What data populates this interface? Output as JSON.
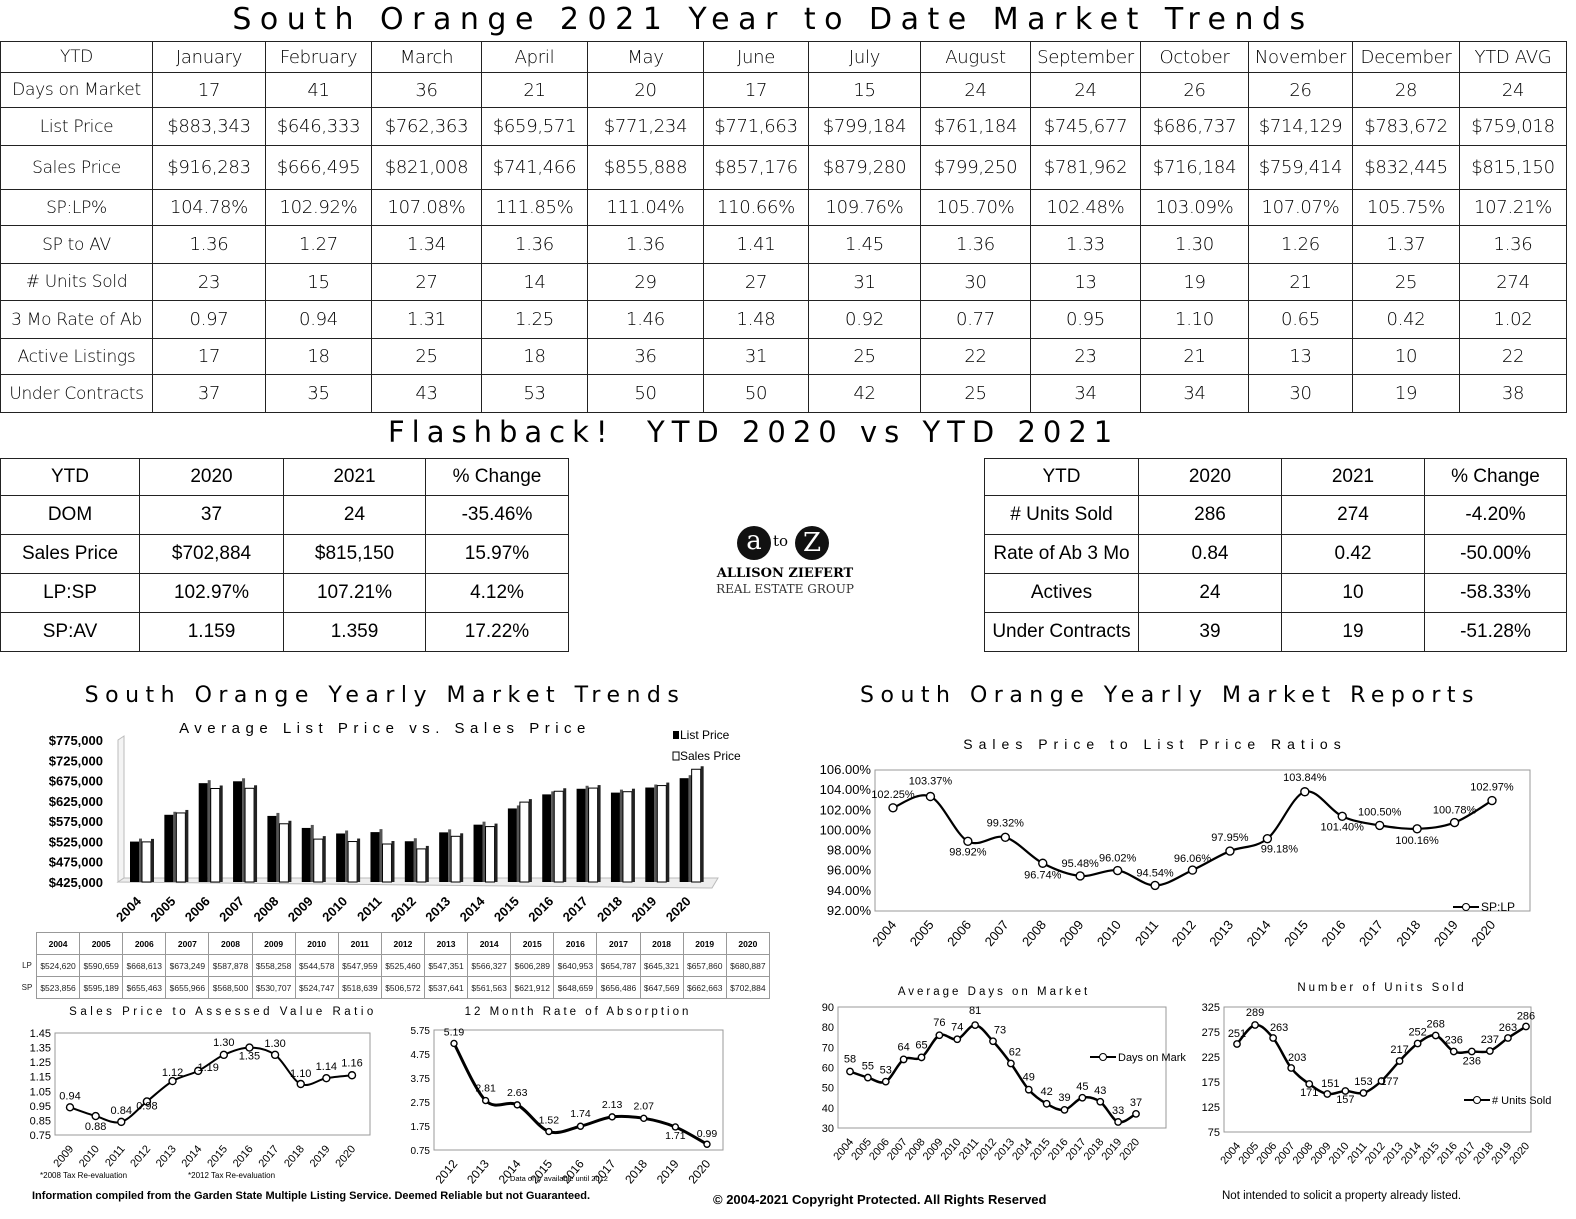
{
  "main_title": "South Orange 2021 Year to Date Market Trends",
  "ytd_table": {
    "headers": [
      "YTD",
      "January",
      "February",
      "March",
      "April",
      "May",
      "June",
      "July",
      "August",
      "September",
      "October",
      "November",
      "December",
      "YTD AVG"
    ],
    "rows": [
      [
        "Days on Market",
        "17",
        "41",
        "36",
        "21",
        "20",
        "17",
        "15",
        "24",
        "24",
        "26",
        "26",
        "28",
        "24"
      ],
      [
        "List Price",
        "$883,343",
        "$646,333",
        "$762,363",
        "$659,571",
        "$771,234",
        "$771,663",
        "$799,184",
        "$761,184",
        "$745,677",
        "$686,737",
        "$714,129",
        "$783,672",
        "$759,018"
      ],
      [
        "Sales Price",
        "$916,283",
        "$666,495",
        "$821,008",
        "$741,466",
        "$855,888",
        "$857,176",
        "$879,280",
        "$799,250",
        "$781,962",
        "$716,184",
        "$759,414",
        "$832,445",
        "$815,150"
      ],
      [
        "SP:LP%",
        "104.78%",
        "102.92%",
        "107.08%",
        "111.85%",
        "111.04%",
        "110.66%",
        "109.76%",
        "105.70%",
        "102.48%",
        "103.09%",
        "107.07%",
        "105.75%",
        "107.21%"
      ],
      [
        "SP to AV",
        "1.36",
        "1.27",
        "1.34",
        "1.36",
        "1.36",
        "1.41",
        "1.45",
        "1.36",
        "1.33",
        "1.30",
        "1.26",
        "1.37",
        "1.36"
      ],
      [
        "# Units Sold",
        "23",
        "15",
        "27",
        "14",
        "29",
        "27",
        "31",
        "30",
        "13",
        "19",
        "21",
        "25",
        "274"
      ],
      [
        "3 Mo Rate of Ab",
        "0.97",
        "0.94",
        "1.31",
        "1.25",
        "1.46",
        "1.48",
        "0.92",
        "0.77",
        "0.95",
        "1.10",
        "0.65",
        "0.42",
        "1.02"
      ],
      [
        "Active Listings",
        "17",
        "18",
        "25",
        "18",
        "36",
        "31",
        "25",
        "22",
        "23",
        "21",
        "13",
        "10",
        "22"
      ],
      [
        "Under Contracts",
        "37",
        "35",
        "43",
        "53",
        "50",
        "50",
        "42",
        "25",
        "34",
        "34",
        "30",
        "19",
        "38"
      ]
    ]
  },
  "flashback_title": "Flashback!  YTD 2020 vs YTD 2021",
  "flash_left": {
    "headers": [
      "YTD",
      "2020",
      "2021",
      "% Change"
    ],
    "rows": [
      [
        "DOM",
        "37",
        "24",
        "-35.46%"
      ],
      [
        "Sales Price",
        "$702,884",
        "$815,150",
        "15.97%"
      ],
      [
        "LP:SP",
        "102.97%",
        "107.21%",
        "4.12%"
      ],
      [
        "SP:AV",
        "1.159",
        "1.359",
        "17.22%"
      ]
    ]
  },
  "flash_right": {
    "headers": [
      "YTD",
      "2020",
      "2021",
      "% Change"
    ],
    "rows": [
      [
        "# Units Sold",
        "286",
        "274",
        "-4.20%"
      ],
      [
        "Rate of Ab 3 Mo",
        "0.84",
        "0.42",
        "-50.00%"
      ],
      [
        "Actives",
        "24",
        "10",
        "-58.33%"
      ],
      [
        "Under Contracts",
        "39",
        "19",
        "-51.28%"
      ]
    ]
  },
  "logo": {
    "a": "a",
    "to": "to",
    "z": "Z",
    "name": "ALLISON ZIEFERT",
    "sub": "REAL ESTATE GROUP"
  },
  "yearly_trends_title": "South Orange Yearly Market Trends",
  "yearly_reports_title": "South Orange Yearly Market Reports",
  "lp_table": {
    "years": [
      "2004",
      "2005",
      "2006",
      "2007",
      "2008",
      "2009",
      "2010",
      "2011",
      "2012",
      "2013",
      "2014",
      "2015",
      "2016",
      "2017",
      "2018",
      "2019",
      "2020"
    ],
    "lp_label": "LP",
    "sp_label": "SP",
    "lp": [
      "$524,620",
      "$590,659",
      "$668,613",
      "$673,249",
      "$587,878",
      "$558,258",
      "$544,578",
      "$547,959",
      "$525,460",
      "$547,351",
      "$566,327",
      "$606,289",
      "$640,953",
      "$654,787",
      "$645,321",
      "$657,860",
      "$680,887"
    ],
    "sp": [
      "$523,856",
      "$595,189",
      "$655,463",
      "$655,966",
      "$568,500",
      "$530,707",
      "$524,747",
      "$518,639",
      "$506,572",
      "$537,641",
      "$561,563",
      "$621,912",
      "$648,659",
      "$656,486",
      "$647,569",
      "$662,663",
      "$702,884"
    ]
  },
  "footer": {
    "left": "Information compiled from the Garden State Multiple Listing Service.  Deemed Reliable but not Guaranteed.",
    "center": "© 2004-2021 Copyright Protected.  All Rights Reserved",
    "right": "Not intended to solicit a property already listed."
  },
  "notes": {
    "tax1": "*2008 Tax Re-evaluation",
    "tax2": "*2012 Tax Re-evaluation",
    "abs": "Data only available until 2012"
  },
  "chart_data": [
    {
      "type": "bar",
      "title": "Average List Price vs. Sales Price",
      "categories": [
        "2004",
        "2005",
        "2006",
        "2007",
        "2008",
        "2009",
        "2010",
        "2011",
        "2012",
        "2013",
        "2014",
        "2015",
        "2016",
        "2017",
        "2018",
        "2019",
        "2020"
      ],
      "series": [
        {
          "name": "List Price",
          "values": [
            524620,
            590659,
            668613,
            673249,
            587878,
            558258,
            544578,
            547959,
            525460,
            547351,
            566327,
            606289,
            640953,
            654787,
            645321,
            657860,
            680887
          ]
        },
        {
          "name": "Sales Price",
          "values": [
            523856,
            595189,
            655463,
            655966,
            568500,
            530707,
            524747,
            518639,
            506572,
            537641,
            561563,
            621912,
            648659,
            656486,
            647569,
            662663,
            702884
          ]
        }
      ],
      "yticks": [
        "$425,000",
        "$475,000",
        "$525,000",
        "$575,000",
        "$625,000",
        "$675,000",
        "$725,000",
        "$775,000"
      ],
      "ylim": [
        425000,
        775000
      ],
      "legend": "top-right"
    },
    {
      "type": "line",
      "title": "Sales Price to List Price Ratios",
      "x": [
        "2004",
        "2005",
        "2006",
        "2007",
        "2008",
        "2009",
        "2010",
        "2011",
        "2012",
        "2013",
        "2014",
        "2015",
        "2016",
        "2017",
        "2018",
        "2019",
        "2020"
      ],
      "series": [
        {
          "name": "SP:LP",
          "values": [
            102.25,
            103.37,
            98.92,
            99.32,
            96.74,
            95.48,
            96.02,
            94.54,
            96.06,
            97.95,
            99.18,
            103.84,
            101.4,
            100.5,
            100.16,
            100.78,
            102.97
          ]
        }
      ],
      "labels": [
        "102.25%",
        "103.37%",
        "98.92%",
        "99.32%",
        "96.74%",
        "95.48%",
        "96.02%",
        "94.54%",
        "96.06%",
        "97.95%",
        "99.18%",
        "103.84%",
        "101.40%",
        "100.50%",
        "100.16%",
        "100.78%",
        "102.97%"
      ],
      "yticks": [
        "92.00%",
        "94.00%",
        "96.00%",
        "98.00%",
        "100.00%",
        "102.00%",
        "104.00%",
        "106.00%"
      ],
      "ylim": [
        92,
        106
      ],
      "legend": "bottom-right"
    },
    {
      "type": "line",
      "title": "Sales Price to Assessed Value Ratio",
      "x": [
        "2009",
        "2010",
        "2011",
        "2012",
        "2013",
        "2014",
        "2015",
        "2016",
        "2017",
        "2018",
        "2019",
        "2020"
      ],
      "series": [
        {
          "name": "",
          "values": [
            0.94,
            0.88,
            0.84,
            0.98,
            1.12,
            1.19,
            1.3,
            1.35,
            1.3,
            1.1,
            1.14,
            1.16
          ]
        }
      ],
      "labels": [
        "0.94",
        "0.88",
        "0.84",
        "0.98",
        "1.12",
        "1.19",
        "1.30",
        "1.35",
        "1.30",
        "1.10",
        "1.14",
        "1.16"
      ],
      "yticks": [
        "0.75",
        "0.85",
        "0.95",
        "1.05",
        "1.15",
        "1.25",
        "1.35",
        "1.45"
      ],
      "ylim": [
        0.75,
        1.45
      ]
    },
    {
      "type": "line",
      "title": "12 Month Rate of Absorption",
      "x": [
        "2012",
        "2013",
        "2014",
        "2015",
        "2016",
        "2017",
        "2018",
        "2019",
        "2020"
      ],
      "series": [
        {
          "name": "",
          "values": [
            5.19,
            2.81,
            2.63,
            1.52,
            1.74,
            2.13,
            2.07,
            1.71,
            0.99
          ]
        }
      ],
      "labels": [
        "5.19",
        "2.81",
        "2.63",
        "1.52",
        "1.74",
        "2.13",
        "2.07",
        "1.71",
        "0.99"
      ],
      "yticks": [
        "0.75",
        "1.75",
        "2.75",
        "3.75",
        "4.75",
        "5.75"
      ],
      "ylim": [
        0.75,
        5.75
      ]
    },
    {
      "type": "line",
      "title": "Average Days on Market",
      "x": [
        "2004",
        "2005",
        "2006",
        "2007",
        "2008",
        "2009",
        "2010",
        "2011",
        "2012",
        "2013",
        "2014",
        "2015",
        "2016",
        "2017",
        "2018",
        "2019",
        "2020"
      ],
      "series": [
        {
          "name": "Days on Market",
          "values": [
            58,
            55,
            53,
            64,
            65,
            76,
            74,
            81,
            73,
            62,
            49,
            42,
            39,
            45,
            43,
            33,
            37
          ]
        }
      ],
      "labels": [
        "58",
        "55",
        "53",
        "64",
        "65",
        "76",
        "74",
        "81",
        "73",
        "62",
        "49",
        "42",
        "39",
        "45",
        "43",
        "33",
        "37"
      ],
      "yticks": [
        "30",
        "40",
        "50",
        "60",
        "70",
        "80",
        "90"
      ],
      "ylim": [
        30,
        90
      ],
      "legend": "right"
    },
    {
      "type": "line",
      "title": "Number of Units Sold",
      "x": [
        "2004",
        "2005",
        "2006",
        "2007",
        "2008",
        "2009",
        "2010",
        "2011",
        "2012",
        "2013",
        "2014",
        "2015",
        "2016",
        "2017",
        "2018",
        "2019",
        "2020"
      ],
      "series": [
        {
          "name": "# Units Sold",
          "values": [
            251,
            289,
            263,
            203,
            171,
            151,
            157,
            153,
            177,
            217,
            252,
            268,
            236,
            236,
            237,
            263,
            286
          ]
        }
      ],
      "labels": [
        "251",
        "289",
        "263",
        "203",
        "171",
        "151",
        "157",
        "153",
        "177",
        "217",
        "252",
        "268",
        "236",
        "236",
        "237",
        "263",
        "286"
      ],
      "yticks": [
        "75",
        "125",
        "175",
        "225",
        "275",
        "325"
      ],
      "ylim": [
        75,
        325
      ],
      "legend": "bottom-right"
    }
  ]
}
